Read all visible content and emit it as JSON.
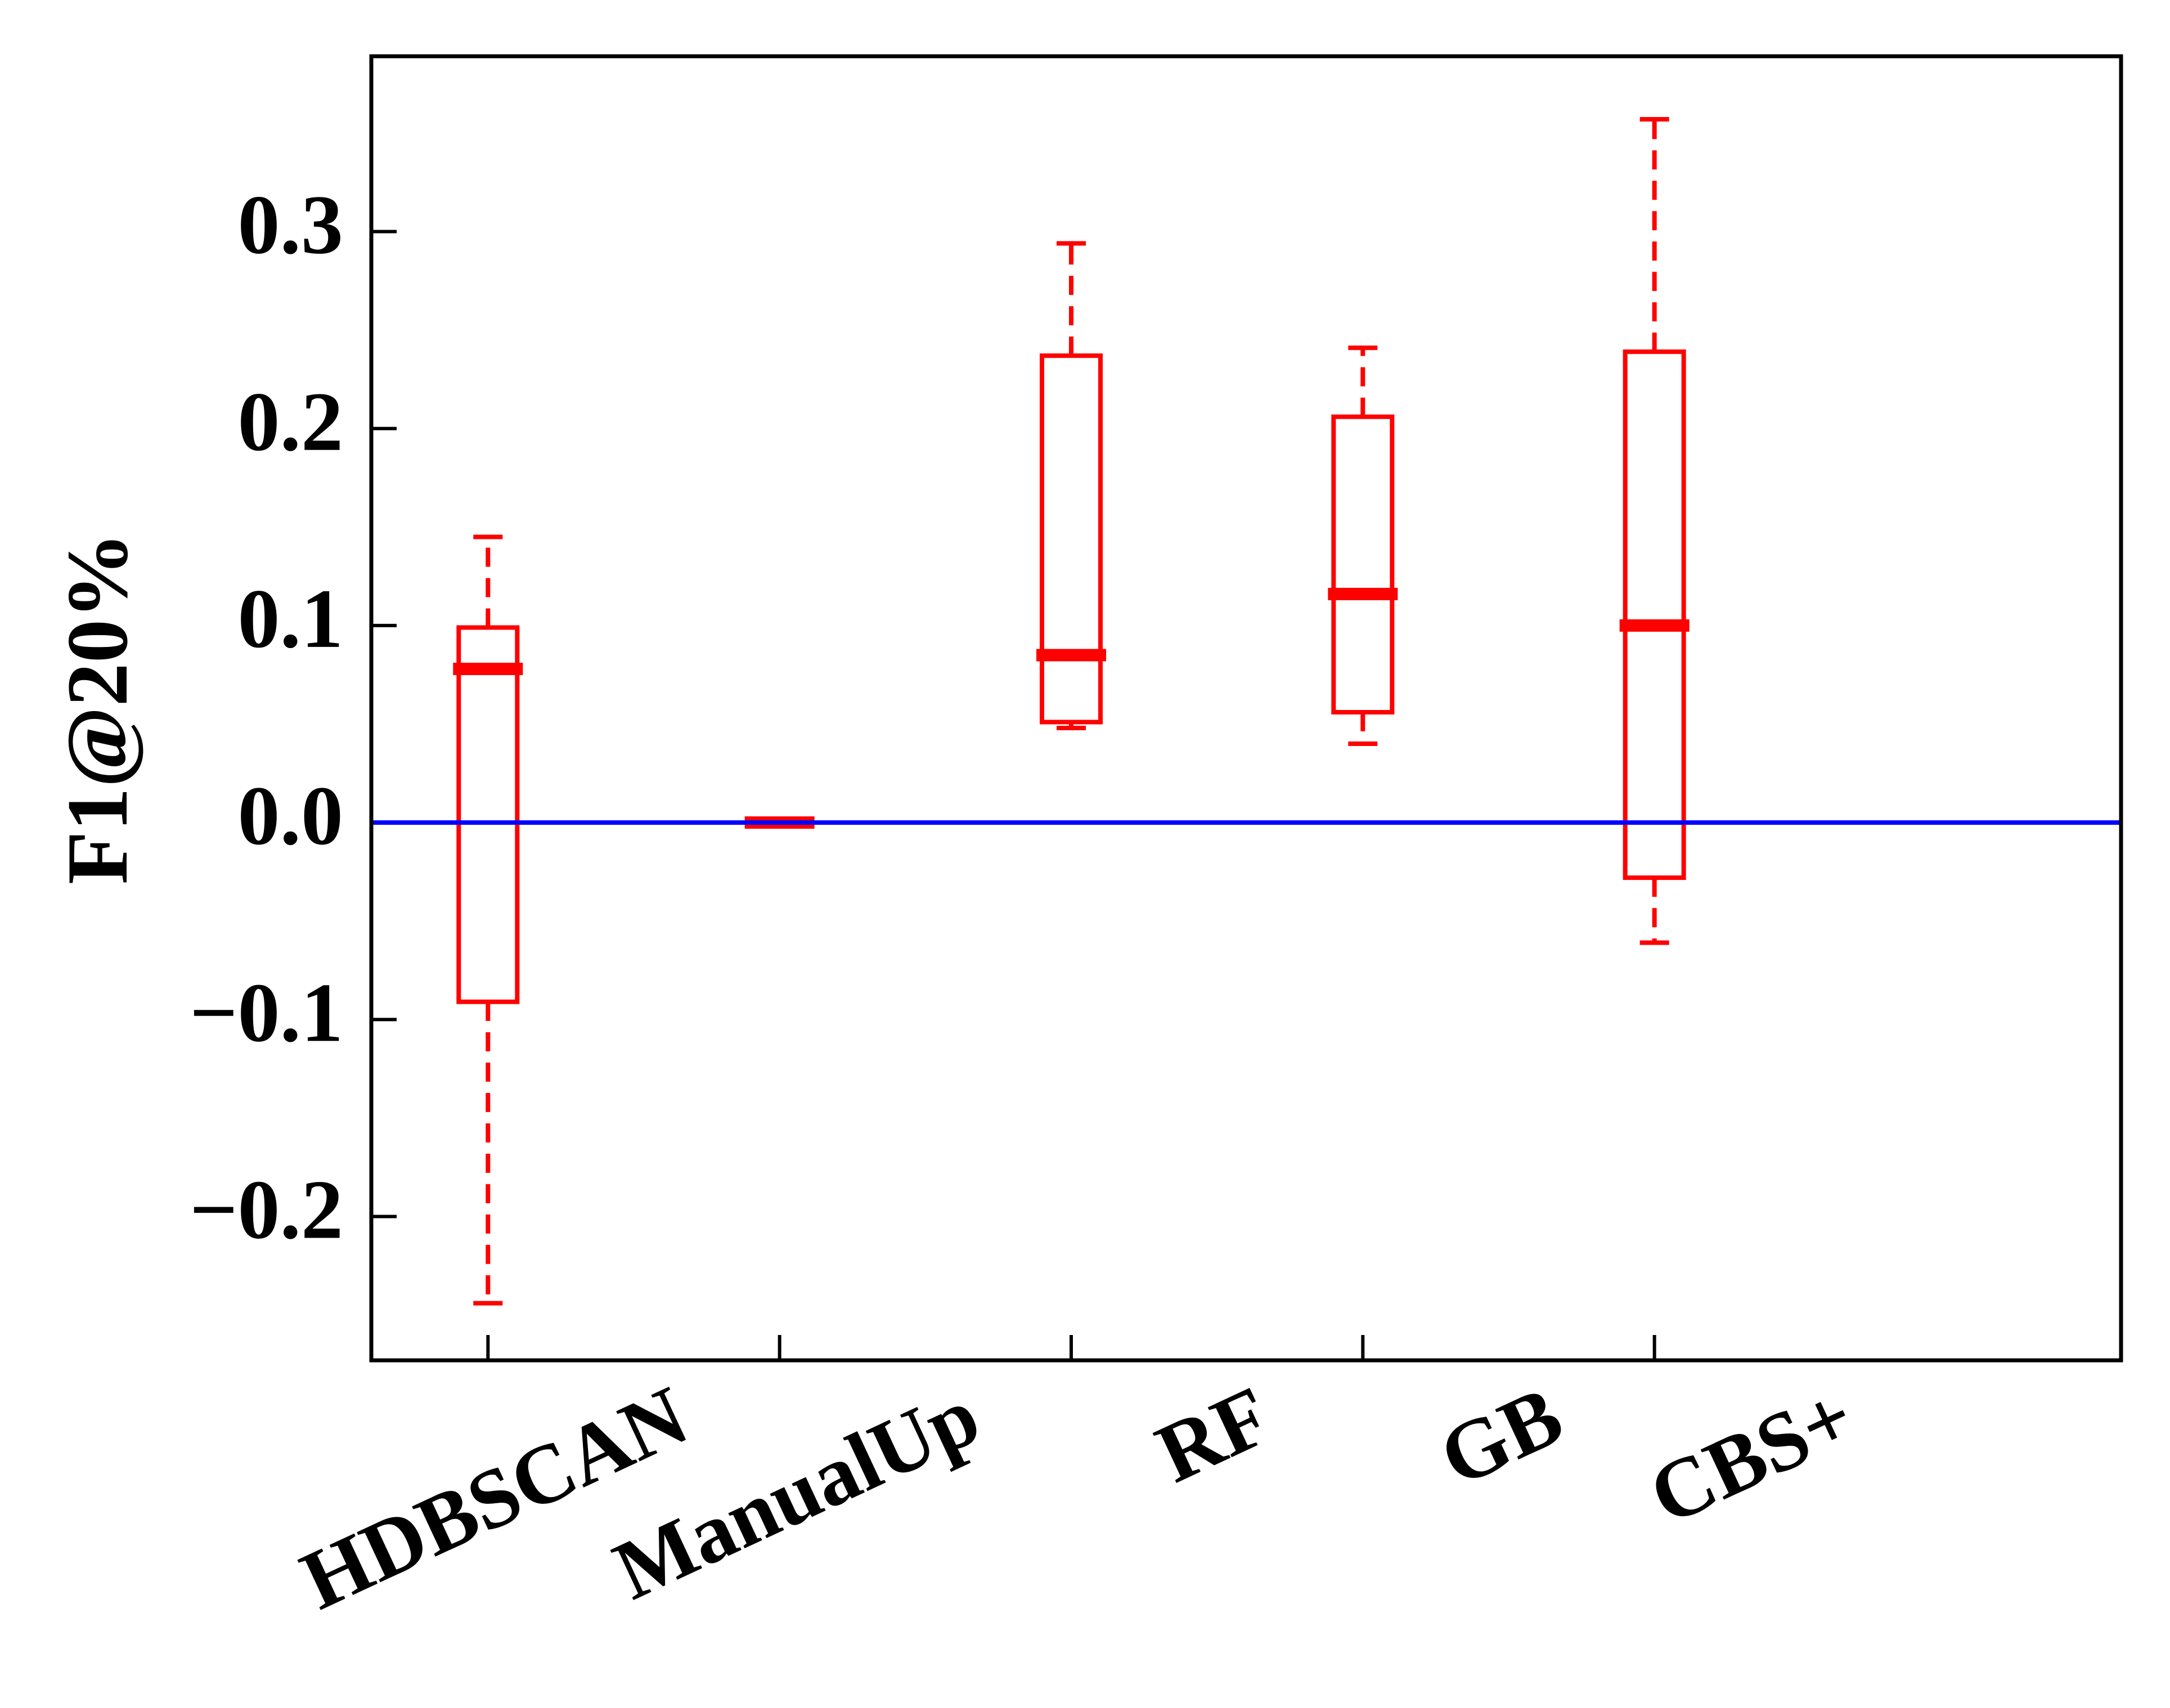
{
  "chart_data": {
    "type": "box",
    "ylabel": "F1@20%",
    "xlabel": "",
    "title": "",
    "categories": [
      "HDBSCAN",
      "ManualUp",
      "RF",
      "GB",
      "CBS+"
    ],
    "boxes": [
      {
        "category": "HDBSCAN",
        "whisker_low": -0.244,
        "q1": -0.091,
        "median": 0.078,
        "q3": 0.099,
        "whisker_high": 0.145
      },
      {
        "category": "ManualUp",
        "whisker_low": 0.0,
        "q1": 0.0,
        "median": 0.0,
        "q3": 0.0,
        "whisker_high": 0.0
      },
      {
        "category": "RF",
        "whisker_low": 0.048,
        "q1": 0.051,
        "median": 0.085,
        "q3": 0.237,
        "whisker_high": 0.294
      },
      {
        "category": "GB",
        "whisker_low": 0.04,
        "q1": 0.056,
        "median": 0.116,
        "q3": 0.206,
        "whisker_high": 0.241
      },
      {
        "category": "CBS+",
        "whisker_low": -0.061,
        "q1": -0.028,
        "median": 0.1,
        "q3": 0.239,
        "whisker_high": 0.357
      }
    ],
    "yticks": [
      -0.2,
      -0.1,
      0.0,
      0.1,
      0.2,
      0.3
    ],
    "ytick_labels": [
      "−0.2",
      "−0.1",
      "0.0",
      "0.1",
      "0.2",
      "0.3"
    ],
    "ylim": [
      -0.273,
      0.389
    ],
    "xlim": [
      0.6,
      6.6
    ],
    "reference_line": {
      "y": 0.0,
      "color": "#0000ff"
    },
    "box_color": "#ff0000",
    "grid": false,
    "legend": "none"
  }
}
